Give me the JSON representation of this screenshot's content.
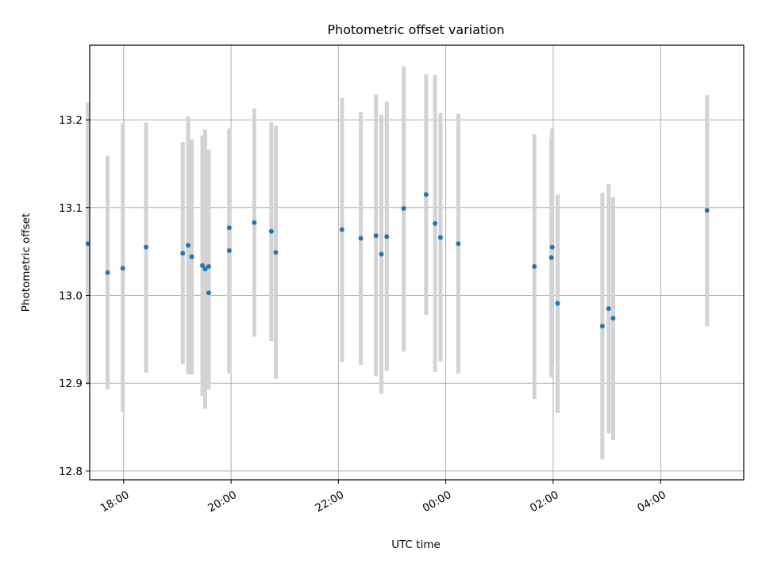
{
  "chart_data": {
    "type": "scatter",
    "title": "Photometric offset variation",
    "xlabel": "UTC time",
    "ylabel": "Photometric offset",
    "xlim": [
      "17:22",
      "05:33"
    ],
    "ylim": [
      12.79,
      13.285
    ],
    "grid": true,
    "x_ticks": [
      "18:00",
      "20:00",
      "22:00",
      "00:00",
      "02:00",
      "04:00"
    ],
    "y_ticks": [
      12.8,
      12.9,
      13.0,
      13.1,
      13.2
    ],
    "y_tick_labels": [
      "12.8",
      "12.9",
      "13.0",
      "13.1",
      "13.2"
    ],
    "point_color": "#1f77b4",
    "errorbar_color": "#d3d3d3",
    "points": [
      {
        "t": "17:20",
        "y": 13.059,
        "lo": 12.898,
        "hi": 13.22
      },
      {
        "t": "17:42",
        "y": 13.026,
        "lo": 12.893,
        "hi": 13.159
      },
      {
        "t": "17:59",
        "y": 13.031,
        "lo": 12.867,
        "hi": 13.196
      },
      {
        "t": "18:25",
        "y": 13.055,
        "lo": 12.912,
        "hi": 13.197
      },
      {
        "t": "19:06",
        "y": 13.048,
        "lo": 12.922,
        "hi": 13.175
      },
      {
        "t": "19:12",
        "y": 13.057,
        "lo": 12.91,
        "hi": 13.204
      },
      {
        "t": "19:16",
        "y": 13.044,
        "lo": 12.91,
        "hi": 13.178
      },
      {
        "t": "19:28",
        "y": 13.034,
        "lo": 12.886,
        "hi": 13.182
      },
      {
        "t": "19:31",
        "y": 13.03,
        "lo": 12.871,
        "hi": 13.189
      },
      {
        "t": "19:35",
        "y": 13.003,
        "lo": 12.893,
        "hi": 13.166
      },
      {
        "t": "19:35",
        "y": 13.033,
        "lo": 12.893,
        "hi": 13.166
      },
      {
        "t": "19:58",
        "y": 13.077,
        "lo": 12.965,
        "hi": 13.19
      },
      {
        "t": "19:58",
        "y": 13.051,
        "lo": 12.911,
        "hi": 13.19
      },
      {
        "t": "20:26",
        "y": 13.083,
        "lo": 12.953,
        "hi": 13.213
      },
      {
        "t": "20:45",
        "y": 13.073,
        "lo": 12.948,
        "hi": 13.197
      },
      {
        "t": "20:50",
        "y": 13.049,
        "lo": 12.905,
        "hi": 13.193
      },
      {
        "t": "22:04",
        "y": 13.075,
        "lo": 12.924,
        "hi": 13.225
      },
      {
        "t": "22:25",
        "y": 13.065,
        "lo": 12.921,
        "hi": 13.209
      },
      {
        "t": "22:42",
        "y": 13.068,
        "lo": 12.908,
        "hi": 13.229
      },
      {
        "t": "22:48",
        "y": 13.047,
        "lo": 12.888,
        "hi": 13.206
      },
      {
        "t": "22:54",
        "y": 13.067,
        "lo": 12.914,
        "hi": 13.221
      },
      {
        "t": "23:13",
        "y": 13.099,
        "lo": 12.936,
        "hi": 13.261
      },
      {
        "t": "23:38",
        "y": 13.115,
        "lo": 12.978,
        "hi": 13.252
      },
      {
        "t": "23:48",
        "y": 13.082,
        "lo": 12.913,
        "hi": 13.251
      },
      {
        "t": "23:54",
        "y": 13.066,
        "lo": 12.925,
        "hi": 13.208
      },
      {
        "t": "00:14",
        "y": 13.059,
        "lo": 12.911,
        "hi": 13.207
      },
      {
        "t": "01:39",
        "y": 13.033,
        "lo": 12.882,
        "hi": 13.184
      },
      {
        "t": "01:58",
        "y": 13.043,
        "lo": 12.907,
        "hi": 13.18
      },
      {
        "t": "01:59",
        "y": 13.055,
        "lo": 12.921,
        "hi": 13.19
      },
      {
        "t": "02:05",
        "y": 12.991,
        "lo": 12.866,
        "hi": 13.115
      },
      {
        "t": "02:55",
        "y": 12.965,
        "lo": 12.813,
        "hi": 13.117
      },
      {
        "t": "03:02",
        "y": 12.985,
        "lo": 12.843,
        "hi": 13.127
      },
      {
        "t": "03:07",
        "y": 12.974,
        "lo": 12.835,
        "hi": 13.112
      },
      {
        "t": "04:52",
        "y": 13.097,
        "lo": 12.965,
        "hi": 13.228
      }
    ]
  }
}
